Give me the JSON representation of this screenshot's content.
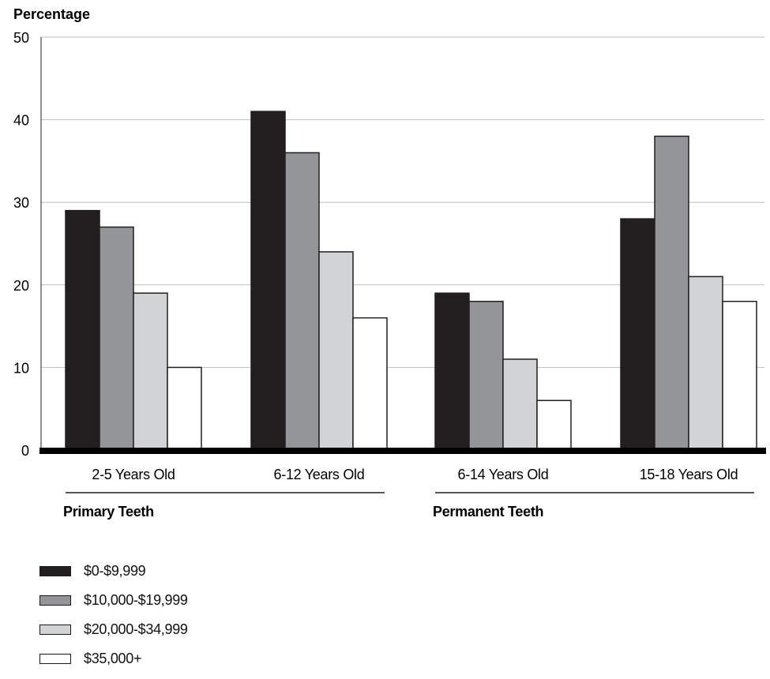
{
  "chart_data": {
    "type": "bar",
    "ylabel": "Percentage",
    "ylim": [
      0,
      50
    ],
    "yticks": [
      0,
      10,
      20,
      30,
      40,
      50
    ],
    "grid": true,
    "legend_position": "bottom-left",
    "categories": [
      "2-5 Years Old",
      "6-12 Years Old",
      "6-14 Years Old",
      "15-18 Years Old"
    ],
    "groups": [
      {
        "label": "Primary Teeth",
        "categories": [
          "2-5 Years Old",
          "6-12 Years Old"
        ]
      },
      {
        "label": "Permanent Teeth",
        "categories": [
          "6-14 Years Old",
          "15-18 Years Old"
        ]
      }
    ],
    "series": [
      {
        "name": "$0-$9,999",
        "color": "#231f20",
        "values": [
          29,
          41,
          19,
          28
        ]
      },
      {
        "name": "$10,000-$19,999",
        "color": "#939598",
        "values": [
          27,
          36,
          18,
          38
        ]
      },
      {
        "name": "$20,000-$34,999",
        "color": "#d1d3d4",
        "values": [
          19,
          24,
          11,
          21
        ]
      },
      {
        "name": "$35,000+",
        "color": "#ffffff",
        "values": [
          10,
          16,
          6,
          18
        ]
      }
    ]
  }
}
